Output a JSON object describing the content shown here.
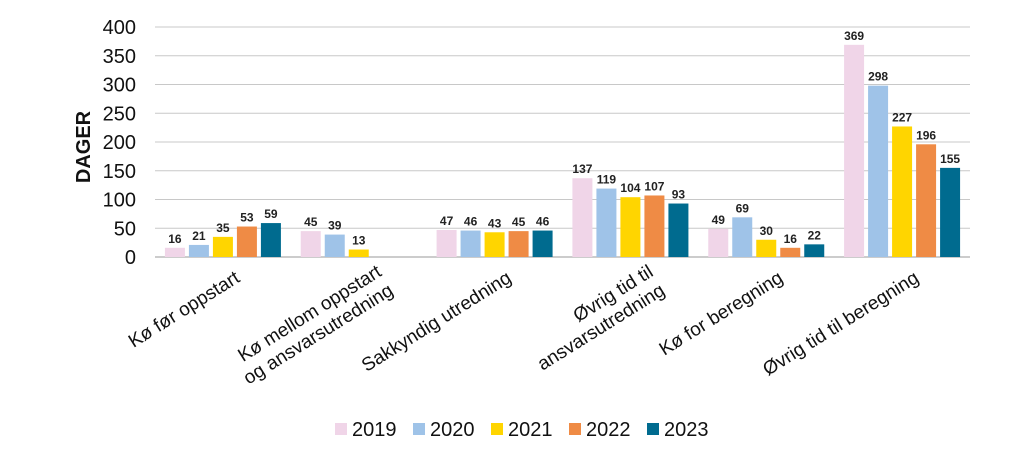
{
  "chart_data": {
    "type": "bar",
    "title": "",
    "xlabel": "",
    "ylabel": "DAGER",
    "ylim": [
      0,
      400
    ],
    "yticks": [
      0,
      50,
      100,
      150,
      200,
      250,
      300,
      350,
      400
    ],
    "grid": true,
    "legend_position": "bottom",
    "categories": [
      [
        "Kø før oppstart"
      ],
      [
        "Kø mellom oppstart",
        "og ansvarsutredning"
      ],
      [
        "Sakkyndig utredning"
      ],
      [
        "Øvrig tid til",
        "ansvarsutredning"
      ],
      [
        "Kø for beregning"
      ],
      [
        "Øvrig tid til beregning"
      ]
    ],
    "series": [
      {
        "name": "2019",
        "color": "#f0d5e8",
        "values": [
          16,
          45,
          47,
          137,
          49,
          369
        ]
      },
      {
        "name": "2020",
        "color": "#9fc3e8",
        "values": [
          21,
          39,
          46,
          119,
          69,
          298
        ]
      },
      {
        "name": "2021",
        "color": "#ffd500",
        "values": [
          35,
          13,
          43,
          104,
          30,
          227
        ]
      },
      {
        "name": "2022",
        "color": "#ef8b45",
        "values": [
          53,
          null,
          45,
          107,
          16,
          196
        ]
      },
      {
        "name": "2023",
        "color": "#006b8f",
        "values": [
          59,
          null,
          46,
          93,
          22,
          155
        ]
      }
    ]
  }
}
